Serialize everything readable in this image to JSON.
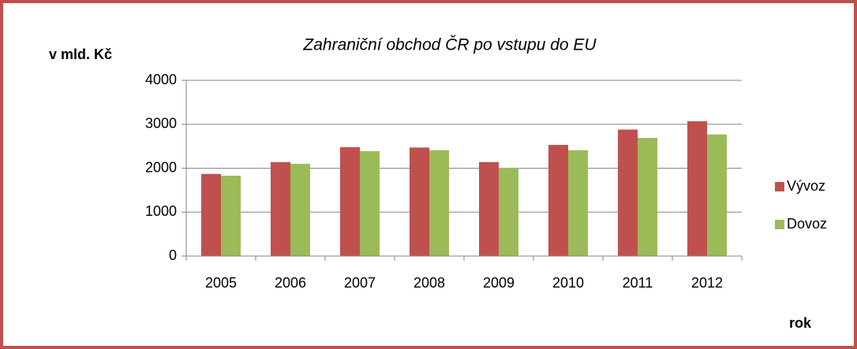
{
  "chart_data": {
    "type": "bar",
    "title": "Zahraniční obchod ČR po vstupu do EU",
    "y_label": "v mld. Kč",
    "x_label": "rok",
    "categories": [
      "2005",
      "2006",
      "2007",
      "2008",
      "2009",
      "2010",
      "2011",
      "2012"
    ],
    "series": [
      {
        "name": "Vývoz",
        "color": "#c0504d",
        "values": [
          1870,
          2140,
          2480,
          2470,
          2140,
          2530,
          2880,
          3070
        ]
      },
      {
        "name": "Dovoz",
        "color": "#9bbb59",
        "values": [
          1830,
          2100,
          2390,
          2410,
          2010,
          2410,
          2690,
          2770
        ]
      }
    ],
    "ylim": [
      0,
      4000
    ],
    "yticks": [
      0,
      1000,
      2000,
      3000,
      4000
    ],
    "grid": true,
    "legend": "right"
  }
}
